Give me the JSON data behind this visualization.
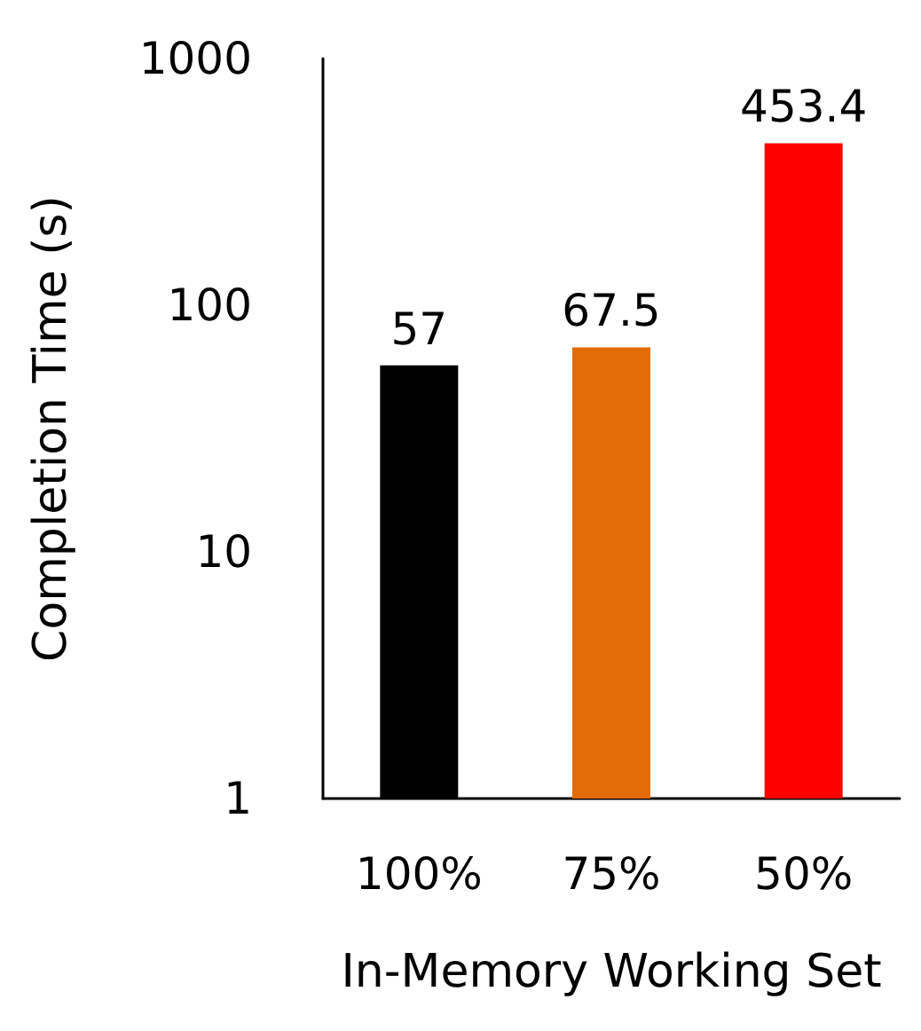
{
  "chart_data": {
    "type": "bar",
    "xlabel": "In-Memory Working Set",
    "ylabel": "Completion Time (s)",
    "categories": [
      "100%",
      "75%",
      "50%"
    ],
    "values": [
      57,
      67.5,
      453.4
    ],
    "colors": [
      "#000000",
      "#e36c09",
      "#ff0000"
    ],
    "log": true,
    "ylim": [
      1,
      1000
    ],
    "yticks": [
      1,
      10,
      100,
      1000
    ],
    "grid": false,
    "data_labels": true
  }
}
